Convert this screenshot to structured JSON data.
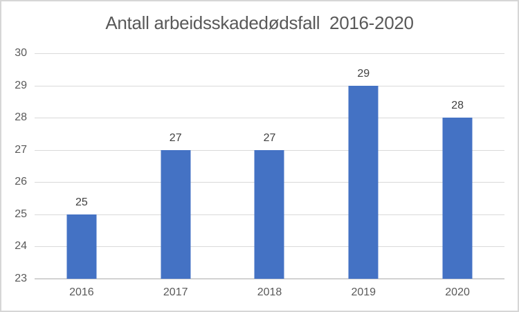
{
  "chart": {
    "background": "#ffffff",
    "border_color": "#d6d6d6"
  },
  "chart_data": {
    "type": "bar",
    "title": "Antall arbeidsskadedødsfall  2016-2020",
    "categories": [
      "2016",
      "2017",
      "2018",
      "2019",
      "2020"
    ],
    "values": [
      25,
      27,
      27,
      29,
      28
    ],
    "data_labels": [
      "25",
      "27",
      "27",
      "29",
      "28"
    ],
    "xlabel": "",
    "ylabel": "",
    "ylim": [
      23,
      30
    ],
    "yticks": [
      30,
      29,
      28,
      27,
      26,
      25,
      24,
      23
    ],
    "grid": true,
    "legend": "none",
    "bar_color": "#4472c4",
    "gridline_color": "#d9d9d9",
    "axis_line_color": "#d2d2d2",
    "title_color": "#595959",
    "tick_label_color": "#595959",
    "data_label_color": "#404040"
  }
}
